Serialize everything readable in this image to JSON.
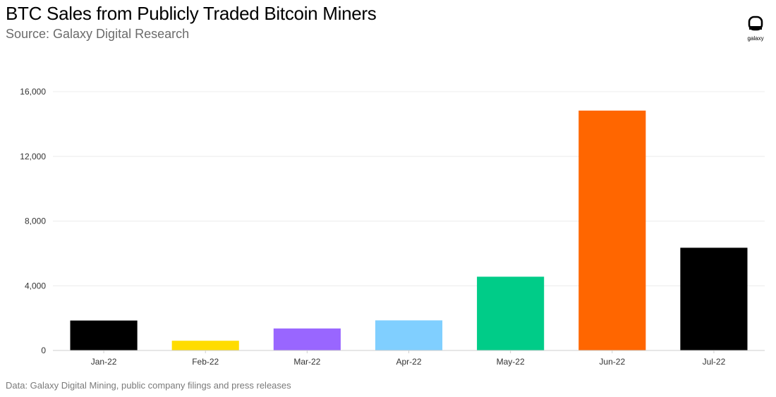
{
  "title": "BTC Sales from Publicly Traded Bitcoin Miners",
  "subtitle": "Source: Galaxy Digital Research",
  "footer": "Data: Galaxy Digital Mining, public company filings and press releases",
  "logo": {
    "icon": "galaxy-logo-icon",
    "text": "galaxy"
  },
  "colors": {
    "grid": "#ececec",
    "axis": "#cfcfcf"
  },
  "chart_data": {
    "type": "bar",
    "categories": [
      "Jan-22",
      "Feb-22",
      "Mar-22",
      "Apr-22",
      "May-22",
      "Jun-22",
      "Jul-22"
    ],
    "values": [
      1850,
      600,
      1360,
      1860,
      4560,
      14830,
      6350
    ],
    "bar_colors": [
      "#000000",
      "#ffdc00",
      "#9966ff",
      "#80cfff",
      "#00cc88",
      "#ff6600",
      "#000000"
    ],
    "ylim": [
      0,
      16000
    ],
    "yticks": [
      0,
      4000,
      8000,
      12000,
      16000
    ],
    "ytick_labels": [
      "0",
      "4,000",
      "8,000",
      "12,000",
      "16,000"
    ],
    "xlabel": "",
    "ylabel": "",
    "grid": true,
    "legend": "none"
  }
}
